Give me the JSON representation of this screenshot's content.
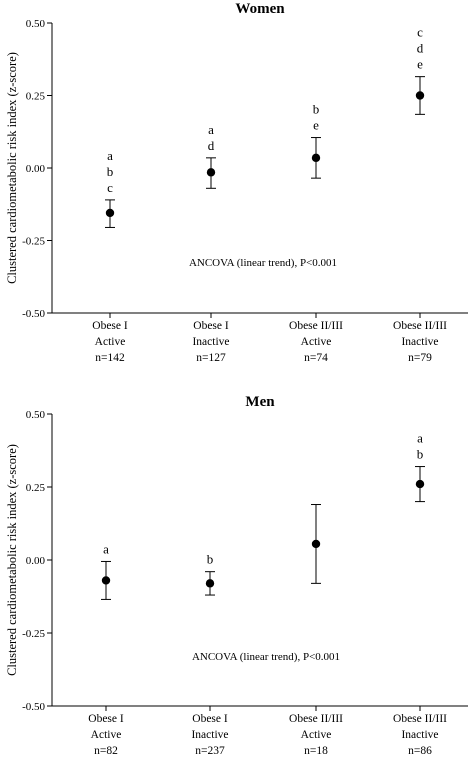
{
  "chart_data": [
    {
      "type": "scatter",
      "title": "Women",
      "ylabel": "Clustered cardiometabolic risk index (z-score)",
      "xlabel": "",
      "ylim": [
        -0.5,
        0.5
      ],
      "yticks": [
        "0.50",
        "0.25",
        "0.00",
        "-0.25",
        "-0.50"
      ],
      "categories": [
        [
          "Obese I",
          "Active",
          "n=142"
        ],
        [
          "Obese I",
          "Inactive",
          "n=127"
        ],
        [
          "Obese II/III",
          "Active",
          "n=74"
        ],
        [
          "Obese II/III",
          "Inactive",
          "n=79"
        ]
      ],
      "points": [
        {
          "mean": -0.155,
          "lower": -0.205,
          "upper": -0.11,
          "letters": [
            "a",
            "b",
            "c"
          ]
        },
        {
          "mean": -0.015,
          "lower": -0.07,
          "upper": 0.035,
          "letters": [
            "a",
            "d"
          ]
        },
        {
          "mean": 0.035,
          "lower": -0.035,
          "upper": 0.105,
          "letters": [
            "b",
            "e"
          ]
        },
        {
          "mean": 0.25,
          "lower": 0.185,
          "upper": 0.315,
          "letters": [
            "c",
            "d",
            "e"
          ]
        }
      ],
      "annotation": "ANCOVA (linear trend), P<0.001"
    },
    {
      "type": "scatter",
      "title": "Men",
      "ylabel": "Clustered cardiometabolic risk index (z-score)",
      "xlabel": "",
      "ylim": [
        -0.5,
        0.5
      ],
      "yticks": [
        "0.50",
        "0.25",
        "0.00",
        "-0.25",
        "-0.50"
      ],
      "categories": [
        [
          "Obese I",
          "Active",
          "n=82"
        ],
        [
          "Obese I",
          "Inactive",
          "n=237"
        ],
        [
          "Obese II/III",
          "Active",
          "n=18"
        ],
        [
          "Obese II/III",
          "Inactive",
          "n=86"
        ]
      ],
      "points": [
        {
          "mean": -0.07,
          "lower": -0.135,
          "upper": -0.005,
          "letters": [
            "a"
          ]
        },
        {
          "mean": -0.08,
          "lower": -0.12,
          "upper": -0.04,
          "letters": [
            "b"
          ]
        },
        {
          "mean": 0.055,
          "lower": -0.08,
          "upper": 0.19,
          "letters": []
        },
        {
          "mean": 0.26,
          "lower": 0.2,
          "upper": 0.32,
          "letters": [
            "a",
            "b"
          ]
        }
      ],
      "annotation": "ANCOVA (linear trend), P<0.001"
    }
  ]
}
